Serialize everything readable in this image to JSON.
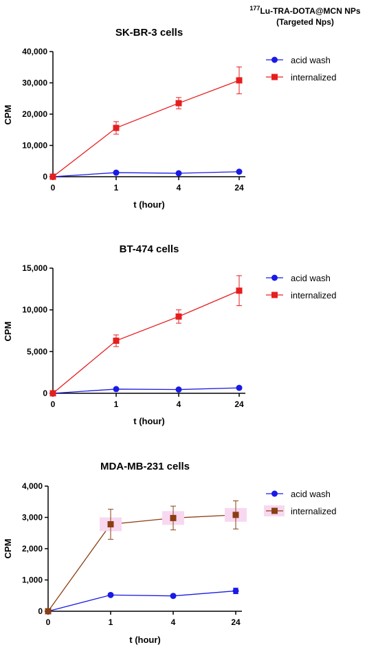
{
  "header": {
    "sup": "177",
    "line1": "Lu-TRA-DOTA@MCN NPs",
    "line2": "(Targeted Nps)"
  },
  "colors": {
    "acid_wash": "#1a1ae6",
    "internalized_red": "#e61e1e",
    "internalized_brown": "#8a3e12",
    "highlight": "#f8d8f0"
  },
  "chart_data": [
    {
      "type": "line",
      "title": "SK-BR-3 cells",
      "xlabel": "t (hour)",
      "ylabel": "CPM",
      "categories": [
        "0",
        "1",
        "4",
        "24"
      ],
      "ylim": [
        0,
        40000
      ],
      "yticks": [
        "0",
        "10,000",
        "20,000",
        "30,000",
        "40,000"
      ],
      "legend_position": "top-right",
      "series": [
        {
          "name": "acid wash",
          "marker": "circle",
          "color": "#1a1ae6",
          "values": [
            0,
            1300,
            1100,
            1600
          ],
          "errors": [
            0,
            0,
            0,
            0
          ]
        },
        {
          "name": "internalized",
          "marker": "square",
          "color": "#e61e1e",
          "values": [
            0,
            15600,
            23500,
            30800
          ],
          "errors": [
            0,
            2000,
            1800,
            4300
          ]
        }
      ]
    },
    {
      "type": "line",
      "title": "BT-474 cells",
      "xlabel": "t (hour)",
      "ylabel": "CPM",
      "categories": [
        "0",
        "1",
        "4",
        "24"
      ],
      "ylim": [
        0,
        15000
      ],
      "yticks": [
        "0",
        "5,000",
        "10,000",
        "15,000"
      ],
      "legend_position": "top-right",
      "series": [
        {
          "name": "acid wash",
          "marker": "circle",
          "color": "#1a1ae6",
          "values": [
            0,
            500,
            450,
            650
          ],
          "errors": [
            0,
            0,
            0,
            0
          ]
        },
        {
          "name": "internalized",
          "marker": "square",
          "color": "#e61e1e",
          "values": [
            0,
            6300,
            9200,
            12300
          ],
          "errors": [
            0,
            700,
            800,
            1800
          ]
        }
      ]
    },
    {
      "type": "line",
      "title": "MDA-MB-231 cells",
      "xlabel": "t (hour)",
      "ylabel": "CPM",
      "categories": [
        "0",
        "1",
        "4",
        "24"
      ],
      "ylim": [
        0,
        4000
      ],
      "yticks": [
        "0",
        "1,000",
        "2,000",
        "3,000",
        "4,000"
      ],
      "legend_position": "top-right",
      "series": [
        {
          "name": "acid wash",
          "marker": "circle",
          "color": "#1a1ae6",
          "values": [
            0,
            520,
            490,
            650
          ],
          "errors": [
            0,
            0,
            0,
            90
          ]
        },
        {
          "name": "internalized",
          "marker": "square",
          "color": "#8a3e12",
          "values": [
            0,
            2780,
            2980,
            3080
          ],
          "errors": [
            0,
            480,
            380,
            450
          ]
        }
      ]
    }
  ]
}
